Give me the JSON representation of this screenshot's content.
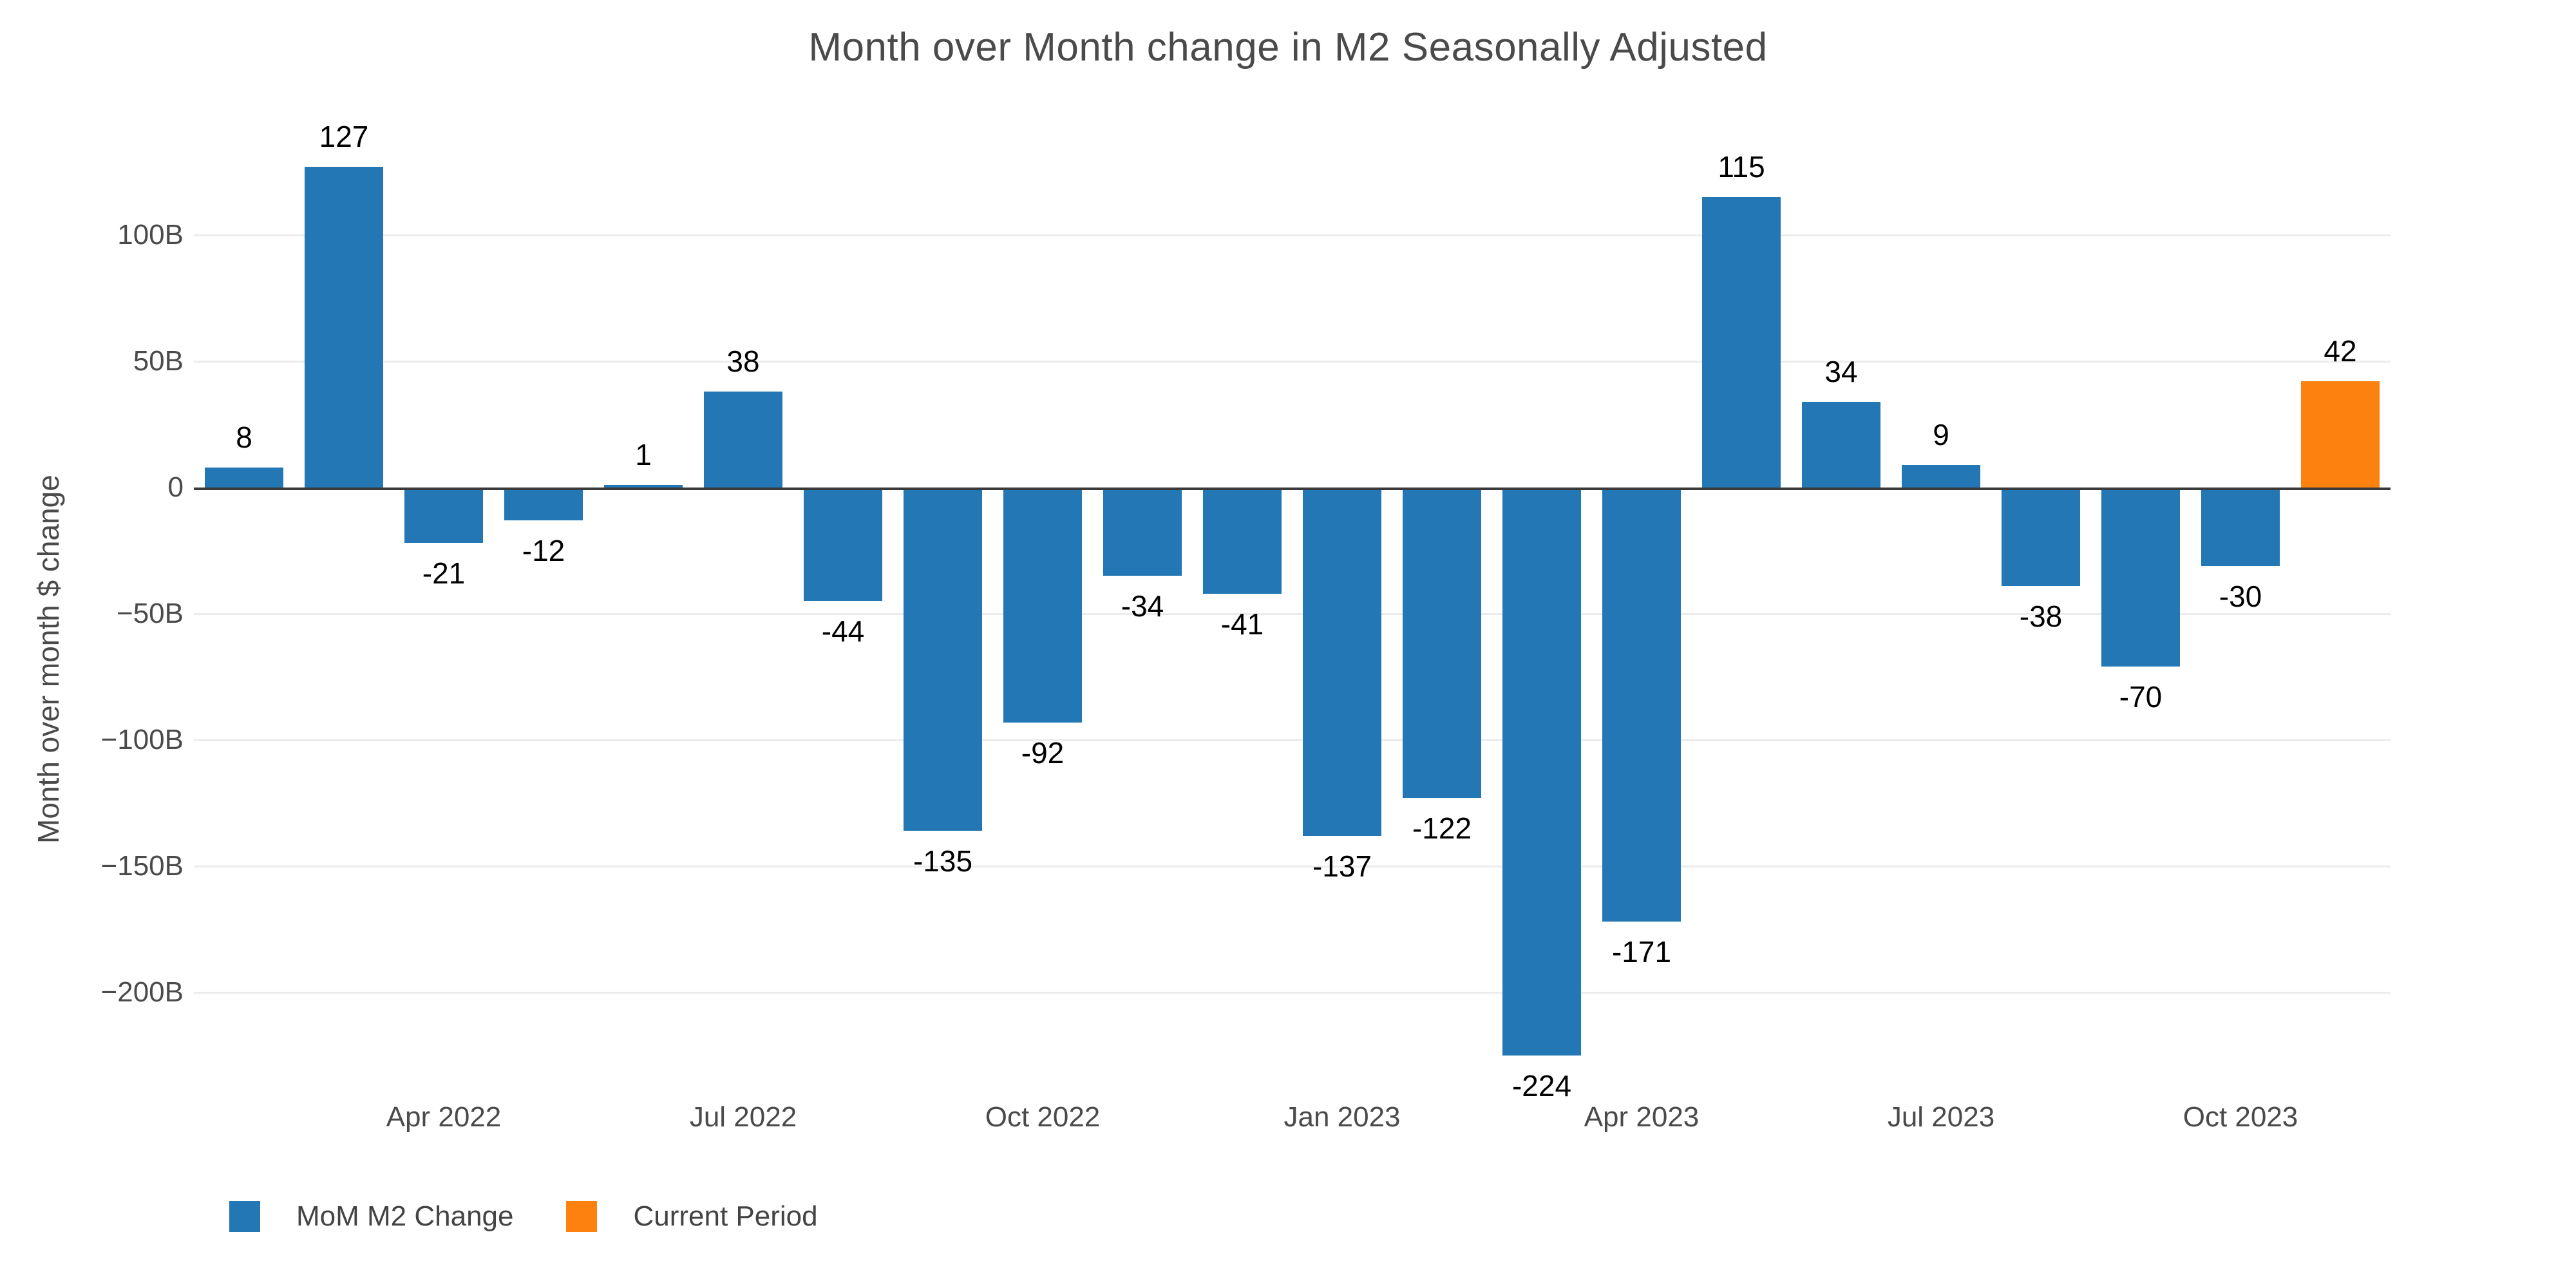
{
  "chart_data": {
    "type": "bar",
    "title": "Month over Month change in M2 Seasonally Adjusted",
    "ylabel": "Month over month $ change",
    "xlabel": "",
    "values": [
      8,
      127,
      -21,
      -12,
      1,
      38,
      -44,
      -135,
      -92,
      -34,
      -41,
      -137,
      -122,
      -224,
      -171,
      115,
      34,
      9,
      -38,
      -70,
      -30,
      42
    ],
    "bar_labels": [
      "8",
      "127",
      "-21",
      "-12",
      "1",
      "38",
      "-44",
      "-135",
      "-92",
      "-34",
      "-41",
      "-137",
      "-122",
      "-224",
      "-171",
      "115",
      "34",
      "9",
      "-38",
      "-70",
      "-30",
      "42"
    ],
    "current_period_index": 21,
    "x_ticks": [
      {
        "label": "Apr 2022",
        "slot": 2
      },
      {
        "label": "Jul 2022",
        "slot": 5
      },
      {
        "label": "Oct 2022",
        "slot": 8
      },
      {
        "label": "Jan 2023",
        "slot": 11
      },
      {
        "label": "Apr 2023",
        "slot": 14
      },
      {
        "label": "Jul 2023",
        "slot": 17
      },
      {
        "label": "Oct 2023",
        "slot": 20
      }
    ],
    "y_ticks": [
      {
        "label": "100B",
        "value": 100
      },
      {
        "label": "50B",
        "value": 50
      },
      {
        "label": "0",
        "value": 0
      },
      {
        "label": "−50B",
        "value": -50
      },
      {
        "label": "−100B",
        "value": -100
      },
      {
        "label": "−150B",
        "value": -150
      },
      {
        "label": "−200B",
        "value": -200
      }
    ],
    "ylim": [
      -240,
      147
    ],
    "grid": true,
    "legend_position": "bottom-left",
    "legend": [
      {
        "label": "MoM M2 Change",
        "color": "#2277b4"
      },
      {
        "label": "Current Period",
        "color": "#fd810e"
      }
    ],
    "colors": {
      "primary_bar": "#2277b4",
      "current_bar": "#fd810e",
      "zero_line": "#3a3a3a",
      "gridline": "#ececec",
      "title_text": "#4a4a4a",
      "tick_text": "#4a4a4a",
      "value_label_text": "#000000"
    }
  }
}
